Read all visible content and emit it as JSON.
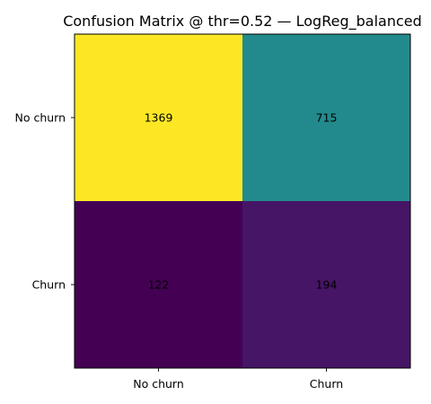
{
  "chart_data": {
    "type": "heatmap",
    "title": "Confusion Matrix @ thr=0.52 — LogReg_balanced",
    "xlabel": "",
    "ylabel": "",
    "x_categories": [
      "No churn",
      "Churn"
    ],
    "y_categories": [
      "No churn",
      "Churn"
    ],
    "values": [
      [
        1369,
        715
      ],
      [
        122,
        194
      ]
    ],
    "colormap": "viridis",
    "colorbar": false,
    "grid": false
  }
}
